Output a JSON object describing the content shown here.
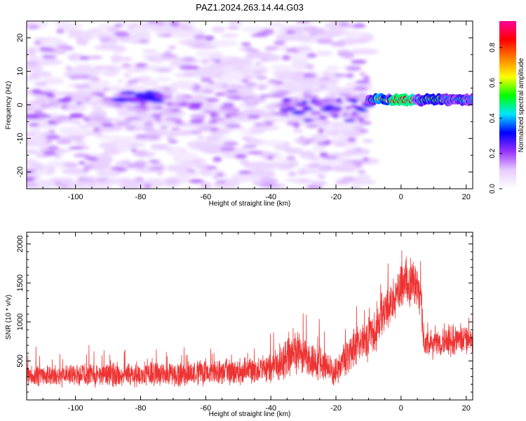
{
  "title": "PAZ1.2024.263.14.44.G03",
  "chart_data": [
    {
      "type": "heatmap",
      "xlabel": "Height of straight line (km)",
      "ylabel": "Frequency (Hz)",
      "xlim": [
        -115,
        22
      ],
      "ylim": [
        -25,
        25
      ],
      "xticks": [
        -100,
        -80,
        -60,
        -40,
        -20,
        0,
        20
      ],
      "yticks": [
        -20,
        -10,
        0,
        10,
        20
      ],
      "colorbar": {
        "label": "Normalized spectral amplitude",
        "range": [
          0,
          0.95
        ],
        "ticks": [
          0.0,
          0.2,
          0.4,
          0.6,
          0.8
        ],
        "colors": [
          "#ffffff",
          "#e6ccff",
          "#9933ff",
          "#0000ff",
          "#00e5ff",
          "#00ff00",
          "#ffff00",
          "#ff8000",
          "#ff0000",
          "#ff0099"
        ]
      },
      "features": {
        "noise_region_x": [
          -115,
          -10
        ],
        "noise_band_freq_hz": [
          -25,
          25
        ],
        "signal_track_x": [
          -10,
          22
        ],
        "signal_track_freq_hz": 1.5,
        "signal_peak_x": [
          -3,
          4
        ],
        "signal_peak_amplitude": 0.9
      }
    },
    {
      "type": "line",
      "xlabel": "Height of straight line (km)",
      "ylabel": "SNR (10 * v/v)",
      "xlim": [
        -115,
        22
      ],
      "ylim": [
        0,
        2150
      ],
      "xticks": [
        -100,
        -80,
        -60,
        -40,
        -20,
        0,
        20
      ],
      "yticks": [
        500,
        1000,
        1500,
        2000
      ],
      "color": "#ee3333",
      "envelope": {
        "x": [
          -115,
          -90,
          -60,
          -45,
          -38,
          -34,
          -30,
          -25,
          -20,
          -15,
          -10,
          -7,
          -5,
          -2,
          0,
          2,
          4,
          6,
          7,
          10,
          15,
          20,
          22
        ],
        "mean": [
          300,
          320,
          340,
          380,
          430,
          600,
          550,
          480,
          360,
          650,
          800,
          950,
          1150,
          1300,
          1450,
          1550,
          1450,
          1350,
          750,
          700,
          750,
          780,
          800
        ],
        "spread": [
          150,
          170,
          180,
          200,
          230,
          380,
          300,
          270,
          200,
          300,
          330,
          350,
          300,
          300,
          350,
          400,
          350,
          300,
          200,
          200,
          220,
          230,
          220
        ]
      }
    }
  ]
}
